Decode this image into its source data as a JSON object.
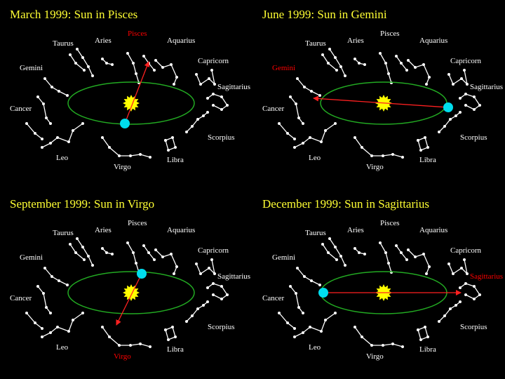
{
  "panels": [
    {
      "title": "March 1999:  Sun in Pisces",
      "constellations": [
        {
          "name": "Taurus",
          "color": "#ffffff"
        },
        {
          "name": "Aries",
          "color": "#ffffff"
        },
        {
          "name": "Pisces",
          "color": "#ff0000"
        },
        {
          "name": "Aquarius",
          "color": "#ffffff"
        },
        {
          "name": "Capricorn",
          "color": "#ffffff"
        },
        {
          "name": "Sagittarius",
          "color": "#ffffff"
        },
        {
          "name": "Scorpius",
          "color": "#ffffff"
        },
        {
          "name": "Libra",
          "color": "#ffffff"
        },
        {
          "name": "Virgo",
          "color": "#ffffff"
        },
        {
          "name": "Leo",
          "color": "#ffffff"
        },
        {
          "name": "Cancer",
          "color": "#ffffff"
        },
        {
          "name": "Gemini",
          "color": "#ffffff"
        }
      ]
    },
    {
      "title": "June 1999:  Sun in Gemini",
      "constellations": [
        {
          "name": "Taurus",
          "color": "#ffffff"
        },
        {
          "name": "Aries",
          "color": "#ffffff"
        },
        {
          "name": "Pisces",
          "color": "#ffffff"
        },
        {
          "name": "Aquarius",
          "color": "#ffffff"
        },
        {
          "name": "Capricorn",
          "color": "#ffffff"
        },
        {
          "name": "Sagittarius",
          "color": "#ffffff"
        },
        {
          "name": "Scorpius",
          "color": "#ffffff"
        },
        {
          "name": "Libra",
          "color": "#ffffff"
        },
        {
          "name": "Virgo",
          "color": "#ffffff"
        },
        {
          "name": "Leo",
          "color": "#ffffff"
        },
        {
          "name": "Cancer",
          "color": "#ffffff"
        },
        {
          "name": "Gemini",
          "color": "#ff0000"
        }
      ]
    },
    {
      "title": "September 1999:  Sun in Virgo",
      "constellations": [
        {
          "name": "Taurus",
          "color": "#ffffff"
        },
        {
          "name": "Aries",
          "color": "#ffffff"
        },
        {
          "name": "Pisces",
          "color": "#ffffff"
        },
        {
          "name": "Aquarius",
          "color": "#ffffff"
        },
        {
          "name": "Capricorn",
          "color": "#ffffff"
        },
        {
          "name": "Sagittarius",
          "color": "#ffffff"
        },
        {
          "name": "Scorpius",
          "color": "#ffffff"
        },
        {
          "name": "Libra",
          "color": "#ffffff"
        },
        {
          "name": "Virgo",
          "color": "#ff0000"
        },
        {
          "name": "Leo",
          "color": "#ffffff"
        },
        {
          "name": "Cancer",
          "color": "#ffffff"
        },
        {
          "name": "Gemini",
          "color": "#ffffff"
        }
      ]
    },
    {
      "title": "December 1999:  Sun in Sagittarius",
      "constellations": [
        {
          "name": "Taurus",
          "color": "#ffffff"
        },
        {
          "name": "Aries",
          "color": "#ffffff"
        },
        {
          "name": "Pisces",
          "color": "#ffffff"
        },
        {
          "name": "Aquarius",
          "color": "#ffffff"
        },
        {
          "name": "Capricorn",
          "color": "#ffffff"
        },
        {
          "name": "Sagittarius",
          "color": "#ff0000"
        },
        {
          "name": "Scorpius",
          "color": "#ffffff"
        },
        {
          "name": "Libra",
          "color": "#ffffff"
        },
        {
          "name": "Virgo",
          "color": "#ffffff"
        },
        {
          "name": "Leo",
          "color": "#ffffff"
        },
        {
          "name": "Cancer",
          "color": "#ffffff"
        },
        {
          "name": "Gemini",
          "color": "#ffffff"
        }
      ]
    }
  ]
}
